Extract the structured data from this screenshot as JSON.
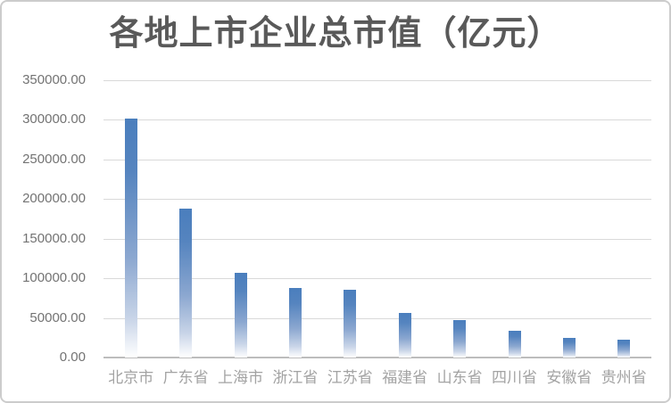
{
  "chart_data": {
    "type": "bar",
    "title": "各地上市企业总市值（亿元）",
    "categories": [
      "北京市",
      "广东省",
      "上海市",
      "浙江省",
      "江苏省",
      "福建省",
      "山东省",
      "四川省",
      "安徽省",
      "贵州省"
    ],
    "values": [
      301500,
      187600,
      107000,
      88000,
      85500,
      56500,
      47200,
      34000,
      25300,
      22000
    ],
    "xlabel": "",
    "ylabel": "",
    "ylim": [
      0,
      350000
    ],
    "ytick_step": 50000,
    "ytick_labels": [
      "0.00",
      "50000.00",
      "100000.00",
      "150000.00",
      "200000.00",
      "250000.00",
      "300000.00",
      "350000.00"
    ],
    "grid": true,
    "legend": "none"
  },
  "colors": {
    "bar_top": "#4a7ebd",
    "bar_upper": "#5584bf",
    "bar_mid": "#8ba7d0",
    "bar_low": "#c9d5e8",
    "bar_bottom": "#ffffff",
    "title_color": "#595959",
    "gridline": "#d9d9d9",
    "axis_line": "#bdbdbd",
    "y_label_color": "#737373",
    "x_label_color": "#a3a3a3",
    "frame_border": "#cccccc"
  }
}
